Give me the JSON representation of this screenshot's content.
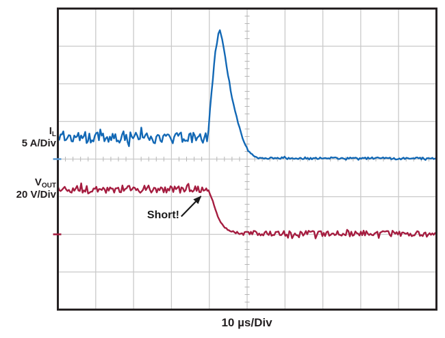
{
  "colors": {
    "background": "#ffffff",
    "border": "#262223",
    "grid": "#c9c9c9",
    "minor_tick": "#b5b5b5",
    "text": "#231f20",
    "annotation": "#1a1a1a"
  },
  "chart_data": {
    "type": "line",
    "title": "",
    "description": "Oscilloscope capture: inductor current spike and output voltage collapse during an output short-circuit event",
    "x_axis": {
      "label": "10 µs/Div",
      "time_per_div_us": 10,
      "divisions": 10,
      "minor_per_div": 5,
      "range_us": [
        0,
        100
      ]
    },
    "y_axis": {
      "divisions": 8,
      "minor_per_div": 5
    },
    "grid": {
      "major": true,
      "center_crosshair_minor_ticks": true
    },
    "series": [
      {
        "id": "IL",
        "label_main": "I",
        "label_sub": "L",
        "scale_label": "5 A/Div",
        "unit": "A",
        "units_per_div": 5,
        "zero_div_from_top": 4,
        "color": "#1268b5",
        "ref_tick_color": "#5c9bd3",
        "baseline_value_a": 2.9,
        "peak_value_a": 17.2,
        "settled_value_a": 0.05,
        "anchors": [
          [
            0,
            2.9,
            0.8
          ],
          [
            39.4,
            2.9,
            0.8
          ],
          [
            39.8,
            3.8,
            0.3
          ],
          [
            40.6,
            9.0,
            0.25
          ],
          [
            41.6,
            14.2,
            0.2
          ],
          [
            42.4,
            16.6,
            0.15
          ],
          [
            42.8,
            17.2,
            0.1
          ],
          [
            43.4,
            16.0,
            0.15
          ],
          [
            44.6,
            12.2,
            0.15
          ],
          [
            46.0,
            8.2,
            0.15
          ],
          [
            47.6,
            4.8,
            0.12
          ],
          [
            49.2,
            2.2,
            0.12
          ],
          [
            50.6,
            0.9,
            0.1
          ],
          [
            52.0,
            0.3,
            0.1
          ],
          [
            53.0,
            0.12,
            0.14
          ],
          [
            100,
            0.08,
            0.14
          ]
        ]
      },
      {
        "id": "VOUT",
        "label_main": "V",
        "label_sub": "OUT",
        "scale_label": "20 V/Div",
        "unit": "V",
        "units_per_div": 20,
        "zero_div_from_top": 6,
        "color": "#a51d40",
        "ref_tick_color": "#a51d40",
        "baseline_value_v": 24,
        "settled_value_v": 0.5,
        "anchors": [
          [
            0,
            24,
            2.0
          ],
          [
            39.2,
            24,
            0.5
          ],
          [
            39.8,
            23.2,
            0.3
          ],
          [
            40.6,
            19.5,
            0.25
          ],
          [
            41.6,
            13.2,
            0.25
          ],
          [
            42.6,
            7.8,
            0.25
          ],
          [
            43.8,
            4.0,
            0.3
          ],
          [
            45.2,
            2.0,
            0.4
          ],
          [
            47.0,
            1.0,
            0.7
          ],
          [
            49.0,
            0.6,
            1.1
          ],
          [
            51.0,
            0.45,
            1.55
          ],
          [
            100,
            0.4,
            1.55
          ]
        ]
      }
    ],
    "annotation": {
      "text": "Short!",
      "series": "VOUT",
      "arrow_from": {
        "t_us": 32.6,
        "value": 9.5
      },
      "arrow_to": {
        "t_us": 37.8,
        "value": 20.2
      }
    }
  }
}
